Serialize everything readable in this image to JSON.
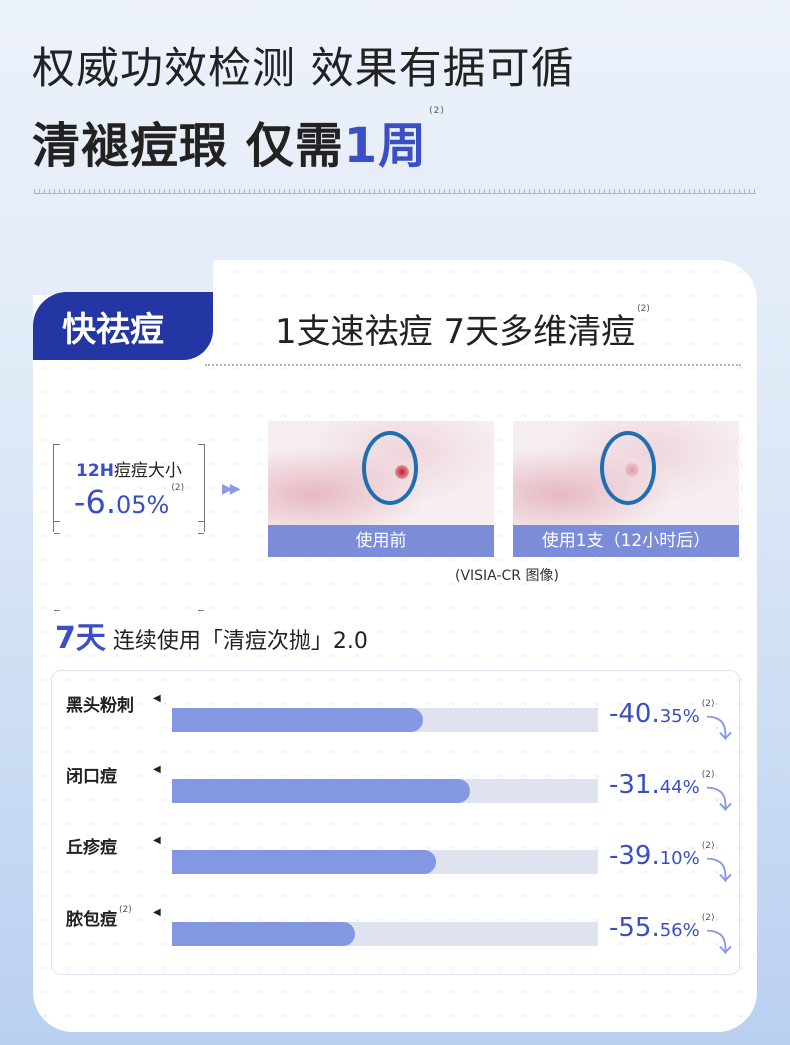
{
  "header": {
    "line1": "权威功效检测 效果有据可循",
    "line2_main": "清褪痘瑕 仅需",
    "line2_accent": "1周",
    "note": "(2)"
  },
  "card": {
    "tab": "快祛痘",
    "subtitle": "1支速祛痘 7天多维清痘",
    "subtitle_note": "(2)",
    "stat": {
      "label_accent": "12H",
      "label": "痘痘大小",
      "value_main": "-6.",
      "value_small": "05%",
      "note": "(2)"
    },
    "photos": [
      {
        "caption": "使用前"
      },
      {
        "caption": "使用1支（12小时后）"
      }
    ],
    "photo_source": "(VISIA-CR 图像)",
    "days_accent": "7天",
    "days_text": "连续使用「清痘次抛」2.0",
    "bars": [
      {
        "label": "黑头粉刺",
        "note": "",
        "value_main": "-40.",
        "value_small": "35%",
        "fill": 0.59
      },
      {
        "label": "闭口痘",
        "note": "",
        "value_main": "-31.",
        "value_small": "44%",
        "fill": 0.7
      },
      {
        "label": "丘疹痘",
        "note": "",
        "value_main": "-39.",
        "value_small": "10%",
        "fill": 0.62
      },
      {
        "label": "脓包痘",
        "note": "(2)",
        "value_main": "-55.",
        "value_small": "56%",
        "fill": 0.43
      }
    ],
    "bar_note": "(2)"
  },
  "colors": {
    "accent": "#3a4fc4",
    "tab": "#2336a3",
    "bar": "#8497e3",
    "track": "#dfe3f0"
  }
}
